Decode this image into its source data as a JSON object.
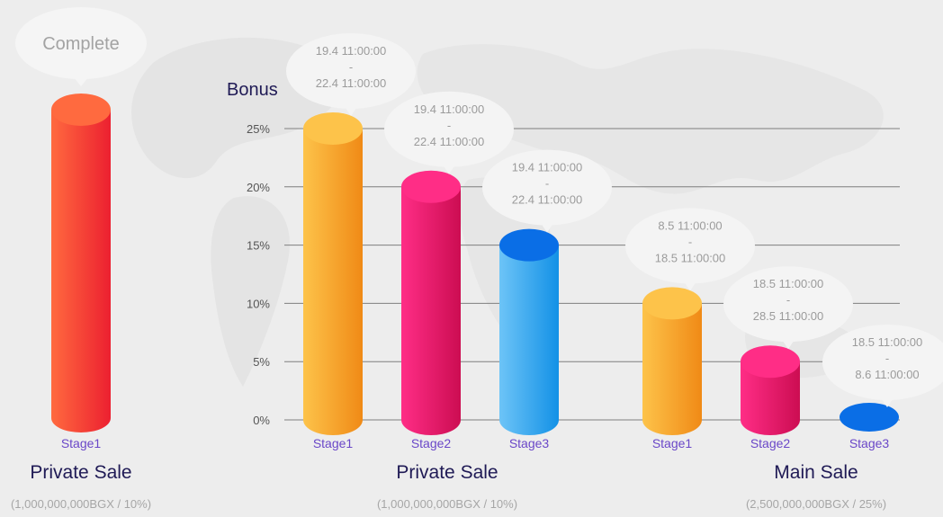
{
  "colors": {
    "orange": [
      "#fdc34a",
      "#f08a16"
    ],
    "pink": [
      "#ff2d86",
      "#cc0d52"
    ],
    "blue": [
      "#6dc4f7",
      "#1391e6"
    ],
    "blue_top": "#0a6ee6",
    "red": [
      "#ff6a3f",
      "#ec2030"
    ],
    "stage_label": "#6a47c8",
    "bubble_text": "#9b9b9b",
    "title_text": "#1f1a55"
  },
  "complete_panel": {
    "bubble_text": "Complete",
    "stage_label": "Stage1",
    "title": "Private Sale",
    "subtitle": "(1,000,000,000BGX / 10%)"
  },
  "sections": [
    {
      "title": "Private Sale",
      "subtitle": "(1,000,000,000BGX / 10%)"
    },
    {
      "title": "Main Sale",
      "subtitle": "(2,500,000,000BGX / 25%)"
    }
  ],
  "chart_data": {
    "type": "bar",
    "ylabel": "Bonus",
    "ylim": [
      0,
      25
    ],
    "yticks": [
      "0%",
      "5%",
      "10%",
      "15%",
      "20%",
      "25%"
    ],
    "grid": true,
    "bars": [
      {
        "group": "Private Sale",
        "label": "Stage1",
        "value": 25,
        "color": "orange",
        "start": "19.4 11:00:00",
        "sep": "-",
        "end": "22.4 11:00:00"
      },
      {
        "group": "Private Sale",
        "label": "Stage2",
        "value": 20,
        "color": "pink",
        "start": "19.4 11:00:00",
        "sep": "-",
        "end": "22.4 11:00:00"
      },
      {
        "group": "Private Sale",
        "label": "Stage3",
        "value": 15,
        "color": "blue",
        "start": "19.4 11:00:00",
        "sep": "-",
        "end": "22.4 11:00:00"
      },
      {
        "group": "Main Sale",
        "label": "Stage1",
        "value": 10,
        "color": "orange",
        "start": "8.5 11:00:00",
        "sep": "-",
        "end": "18.5 11:00:00"
      },
      {
        "group": "Main Sale",
        "label": "Stage2",
        "value": 5,
        "color": "pink",
        "start": "18.5 11:00:00",
        "sep": "-",
        "end": "28.5 11:00:00"
      },
      {
        "group": "Main Sale",
        "label": "Stage3",
        "value": 0,
        "color": "blue",
        "start": "18.5 11:00:00",
        "sep": "-",
        "end": "8.6 11:00:00"
      }
    ]
  }
}
